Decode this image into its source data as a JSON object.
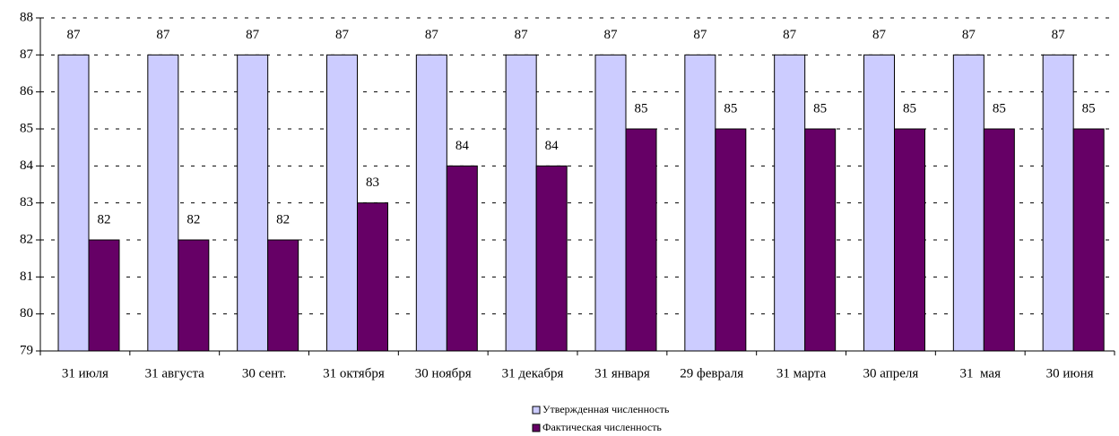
{
  "chart_data": {
    "type": "bar",
    "categories": [
      "31 июля",
      "31 августа",
      "30 сент.",
      "31 октября",
      "30 ноября",
      "31 декабря",
      "31 января",
      "29 февраля",
      "31 марта",
      "30 апреля",
      "31  мая",
      "30 июня"
    ],
    "series": [
      {
        "name": "Утвержденная численность",
        "color": "#ccccff",
        "values": [
          87,
          87,
          87,
          87,
          87,
          87,
          87,
          87,
          87,
          87,
          87,
          87
        ]
      },
      {
        "name": "Фактическая численность",
        "color": "#660066",
        "values": [
          82,
          82,
          82,
          83,
          84,
          84,
          85,
          85,
          85,
          85,
          85,
          85
        ]
      }
    ],
    "ylim": [
      79,
      88
    ],
    "yticks": [
      79,
      80,
      81,
      82,
      83,
      84,
      85,
      86,
      87,
      88
    ],
    "grid": true,
    "legend": "bottom"
  }
}
